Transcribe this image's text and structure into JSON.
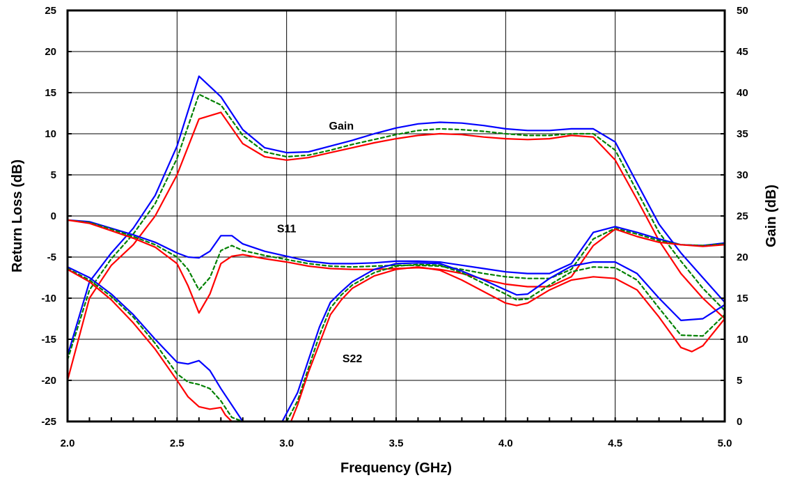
{
  "chart_data": {
    "type": "line",
    "xlabel": "Frequency (GHz)",
    "ylabel": "Return Loss (dB)",
    "y2label": "Gain (dB)",
    "xlim": [
      2.0,
      5.0
    ],
    "ylim": [
      -25,
      25
    ],
    "y2lim": [
      0,
      50
    ],
    "x_ticks": [
      "2.0",
      "2.5",
      "3.0",
      "3.5",
      "4.0",
      "4.5",
      "5.0"
    ],
    "y_ticks": [
      "25",
      "20",
      "15",
      "10",
      "5",
      "0",
      "-5",
      "-10",
      "-15",
      "-20",
      "-25"
    ],
    "y2_ticks": [
      "50",
      "45",
      "40",
      "35",
      "30",
      "25",
      "20",
      "15",
      "10",
      "5",
      "0"
    ],
    "grid": true,
    "annotations": [
      {
        "text": "Gain",
        "x": 3.25,
        "y": 10.5
      },
      {
        "text": "S11",
        "x": 3.0,
        "y": -2.0
      },
      {
        "text": "S22",
        "x": 3.3,
        "y": -17.8
      }
    ],
    "colors": {
      "blue": "#0000ff",
      "green": "#008000",
      "red": "#ff0000"
    },
    "series": [
      {
        "group": "Gain",
        "color": "blue",
        "dash": false,
        "axis": "left",
        "x": [
          2.0,
          2.1,
          2.2,
          2.3,
          2.4,
          2.5,
          2.6,
          2.7,
          2.8,
          2.9,
          3.0,
          3.1,
          3.2,
          3.3,
          3.4,
          3.5,
          3.6,
          3.7,
          3.8,
          3.9,
          4.0,
          4.1,
          4.2,
          4.3,
          4.4,
          4.5,
          4.6,
          4.7,
          4.8,
          4.9,
          5.0
        ],
        "y": [
          -17.0,
          -8.0,
          -4.5,
          -1.5,
          2.5,
          8.5,
          17.0,
          14.5,
          10.5,
          8.3,
          7.7,
          7.8,
          8.5,
          9.2,
          10.0,
          10.7,
          11.2,
          11.4,
          11.3,
          11.0,
          10.6,
          10.4,
          10.4,
          10.6,
          10.6,
          9.0,
          4.0,
          -1.0,
          -4.5,
          -7.5,
          -10.5
        ]
      },
      {
        "group": "Gain",
        "color": "green",
        "dash": true,
        "axis": "left",
        "x": [
          2.0,
          2.1,
          2.2,
          2.3,
          2.4,
          2.5,
          2.6,
          2.7,
          2.8,
          2.9,
          3.0,
          3.1,
          3.2,
          3.3,
          3.4,
          3.5,
          3.6,
          3.7,
          3.8,
          3.9,
          4.0,
          4.1,
          4.2,
          4.3,
          4.4,
          4.5,
          4.6,
          4.7,
          4.8,
          4.9,
          5.0
        ],
        "y": [
          -17.5,
          -9.0,
          -5.2,
          -2.2,
          1.5,
          7.0,
          14.8,
          13.5,
          9.8,
          7.8,
          7.2,
          7.4,
          8.0,
          8.7,
          9.3,
          9.9,
          10.4,
          10.6,
          10.5,
          10.3,
          10.0,
          9.8,
          9.8,
          10.0,
          10.0,
          8.0,
          3.0,
          -2.0,
          -5.5,
          -8.8,
          -11.5
        ]
      },
      {
        "group": "Gain",
        "color": "red",
        "dash": false,
        "axis": "left",
        "x": [
          2.0,
          2.1,
          2.2,
          2.3,
          2.4,
          2.5,
          2.6,
          2.7,
          2.8,
          2.9,
          3.0,
          3.1,
          3.2,
          3.3,
          3.4,
          3.5,
          3.6,
          3.7,
          3.8,
          3.9,
          4.0,
          4.1,
          4.2,
          4.3,
          4.4,
          4.5,
          4.6,
          4.7,
          4.8,
          4.9,
          5.0
        ],
        "y": [
          -20.0,
          -10.0,
          -6.0,
          -3.5,
          0.0,
          5.0,
          11.8,
          12.6,
          8.8,
          7.2,
          6.8,
          7.1,
          7.7,
          8.3,
          8.9,
          9.4,
          9.8,
          10.0,
          9.9,
          9.6,
          9.4,
          9.3,
          9.4,
          9.8,
          9.6,
          6.8,
          2.0,
          -3.0,
          -7.0,
          -10.0,
          -12.5
        ]
      },
      {
        "group": "S11",
        "color": "blue",
        "dash": false,
        "axis": "left",
        "x": [
          2.0,
          2.1,
          2.2,
          2.3,
          2.4,
          2.5,
          2.55,
          2.6,
          2.65,
          2.7,
          2.75,
          2.8,
          2.9,
          3.0,
          3.1,
          3.2,
          3.3,
          3.4,
          3.5,
          3.6,
          3.7,
          3.8,
          3.9,
          4.0,
          4.1,
          4.2,
          4.3,
          4.4,
          4.5,
          4.6,
          4.7,
          4.8,
          4.9,
          5.0
        ],
        "y": [
          -0.5,
          -0.7,
          -1.5,
          -2.3,
          -3.2,
          -4.5,
          -5.0,
          -5.1,
          -4.3,
          -2.4,
          -2.4,
          -3.4,
          -4.3,
          -4.9,
          -5.5,
          -5.8,
          -5.8,
          -5.7,
          -5.5,
          -5.5,
          -5.6,
          -6.0,
          -6.4,
          -6.8,
          -7.0,
          -7.0,
          -5.8,
          -2.0,
          -1.3,
          -2.0,
          -2.8,
          -3.5,
          -3.6,
          -3.3
        ]
      },
      {
        "group": "S11",
        "color": "green",
        "dash": true,
        "axis": "left",
        "x": [
          2.0,
          2.1,
          2.2,
          2.3,
          2.4,
          2.5,
          2.55,
          2.6,
          2.65,
          2.7,
          2.75,
          2.8,
          2.9,
          3.0,
          3.1,
          3.2,
          3.3,
          3.4,
          3.5,
          3.6,
          3.7,
          3.8,
          3.9,
          4.0,
          4.1,
          4.2,
          4.3,
          4.4,
          4.5,
          4.6,
          4.7,
          4.8,
          4.9,
          5.0
        ],
        "y": [
          -0.5,
          -0.8,
          -1.6,
          -2.5,
          -3.5,
          -5.0,
          -6.5,
          -9.0,
          -7.5,
          -4.2,
          -3.6,
          -4.2,
          -4.8,
          -5.3,
          -5.8,
          -6.1,
          -6.2,
          -6.1,
          -6.0,
          -6.0,
          -6.1,
          -6.5,
          -7.0,
          -7.4,
          -7.6,
          -7.6,
          -6.5,
          -2.8,
          -1.5,
          -2.2,
          -3.0,
          -3.5,
          -3.6,
          -3.4
        ]
      },
      {
        "group": "S11",
        "color": "red",
        "dash": false,
        "axis": "left",
        "x": [
          2.0,
          2.1,
          2.2,
          2.3,
          2.4,
          2.5,
          2.55,
          2.6,
          2.65,
          2.7,
          2.75,
          2.8,
          2.9,
          3.0,
          3.1,
          3.2,
          3.3,
          3.4,
          3.5,
          3.6,
          3.7,
          3.8,
          3.9,
          4.0,
          4.1,
          4.2,
          4.3,
          4.4,
          4.5,
          4.6,
          4.7,
          4.8,
          4.9,
          5.0
        ],
        "y": [
          -0.5,
          -0.9,
          -1.8,
          -2.7,
          -3.8,
          -5.8,
          -8.5,
          -11.8,
          -9.5,
          -5.8,
          -4.9,
          -4.7,
          -5.2,
          -5.6,
          -6.1,
          -6.4,
          -6.5,
          -6.5,
          -6.4,
          -6.3,
          -6.5,
          -7.0,
          -7.7,
          -8.3,
          -8.6,
          -8.6,
          -7.4,
          -3.6,
          -1.6,
          -2.5,
          -3.2,
          -3.5,
          -3.7,
          -3.5
        ]
      },
      {
        "group": "S22",
        "color": "blue",
        "dash": false,
        "axis": "left",
        "x": [
          2.0,
          2.1,
          2.2,
          2.3,
          2.4,
          2.5,
          2.55,
          2.6,
          2.65,
          2.7,
          2.75,
          2.8
        ],
        "y": [
          -6.2,
          -7.5,
          -9.5,
          -12.0,
          -15.0,
          -17.8,
          -18.0,
          -17.6,
          -18.8,
          -21.0,
          -23.0,
          -25.0
        ]
      },
      {
        "group": "S22",
        "color": "blue",
        "dash": false,
        "axis": "left",
        "x": [
          2.98,
          3.05,
          3.1,
          3.15,
          3.2,
          3.25,
          3.3,
          3.4,
          3.5,
          3.6,
          3.7,
          3.8,
          3.9,
          4.0,
          4.05,
          4.1,
          4.2,
          4.3,
          4.4,
          4.5,
          4.6,
          4.7,
          4.8,
          4.9,
          5.0
        ],
        "y": [
          -25.0,
          -21.5,
          -17.5,
          -13.5,
          -10.5,
          -9.2,
          -8.0,
          -6.5,
          -5.8,
          -5.7,
          -5.8,
          -6.7,
          -7.8,
          -9.0,
          -9.6,
          -9.5,
          -7.6,
          -6.1,
          -5.6,
          -5.6,
          -7.0,
          -10.0,
          -12.7,
          -12.5,
          -10.8
        ]
      },
      {
        "group": "S22",
        "color": "green",
        "dash": true,
        "axis": "left",
        "x": [
          2.0,
          2.1,
          2.2,
          2.3,
          2.4,
          2.5,
          2.55,
          2.6,
          2.65,
          2.7,
          2.75,
          2.8
        ],
        "y": [
          -6.4,
          -7.8,
          -9.8,
          -12.3,
          -15.5,
          -19.2,
          -20.2,
          -20.5,
          -21.0,
          -22.5,
          -24.5,
          -25.0
        ]
      },
      {
        "group": "S22",
        "color": "green",
        "dash": true,
        "axis": "left",
        "x": [
          3.0,
          3.05,
          3.1,
          3.15,
          3.2,
          3.25,
          3.3,
          3.4,
          3.5,
          3.6,
          3.7,
          3.8,
          3.9,
          4.0,
          4.05,
          4.1,
          4.2,
          4.3,
          4.4,
          4.5,
          4.6,
          4.7,
          4.8,
          4.9,
          5.0
        ],
        "y": [
          -25.0,
          -22.5,
          -18.5,
          -14.5,
          -11.2,
          -9.6,
          -8.4,
          -6.9,
          -6.1,
          -5.9,
          -6.0,
          -6.9,
          -8.2,
          -9.5,
          -10.2,
          -10.1,
          -8.4,
          -6.8,
          -6.2,
          -6.3,
          -7.8,
          -11.2,
          -14.5,
          -14.6,
          -12.0
        ]
      },
      {
        "group": "S22",
        "color": "red",
        "dash": false,
        "axis": "left",
        "x": [
          2.0,
          2.1,
          2.2,
          2.3,
          2.4,
          2.5,
          2.55,
          2.6,
          2.65,
          2.7,
          2.72,
          2.75,
          2.8
        ],
        "y": [
          -6.5,
          -8.0,
          -10.2,
          -13.0,
          -16.2,
          -20.0,
          -22.0,
          -23.2,
          -23.5,
          -23.3,
          -24.2,
          -25.0,
          -25.0
        ]
      },
      {
        "group": "S22",
        "color": "red",
        "dash": false,
        "axis": "left",
        "x": [
          3.02,
          3.05,
          3.1,
          3.15,
          3.2,
          3.25,
          3.3,
          3.4,
          3.5,
          3.6,
          3.7,
          3.8,
          3.9,
          4.0,
          4.05,
          4.1,
          4.2,
          4.3,
          4.4,
          4.5,
          4.6,
          4.7,
          4.8,
          4.85,
          4.9,
          5.0
        ],
        "y": [
          -25.0,
          -23.0,
          -19.0,
          -15.5,
          -12.0,
          -10.2,
          -8.8,
          -7.3,
          -6.5,
          -6.2,
          -6.6,
          -7.8,
          -9.2,
          -10.6,
          -10.9,
          -10.6,
          -9.0,
          -7.8,
          -7.4,
          -7.6,
          -9.0,
          -12.3,
          -16.0,
          -16.5,
          -15.8,
          -12.5
        ]
      }
    ]
  }
}
